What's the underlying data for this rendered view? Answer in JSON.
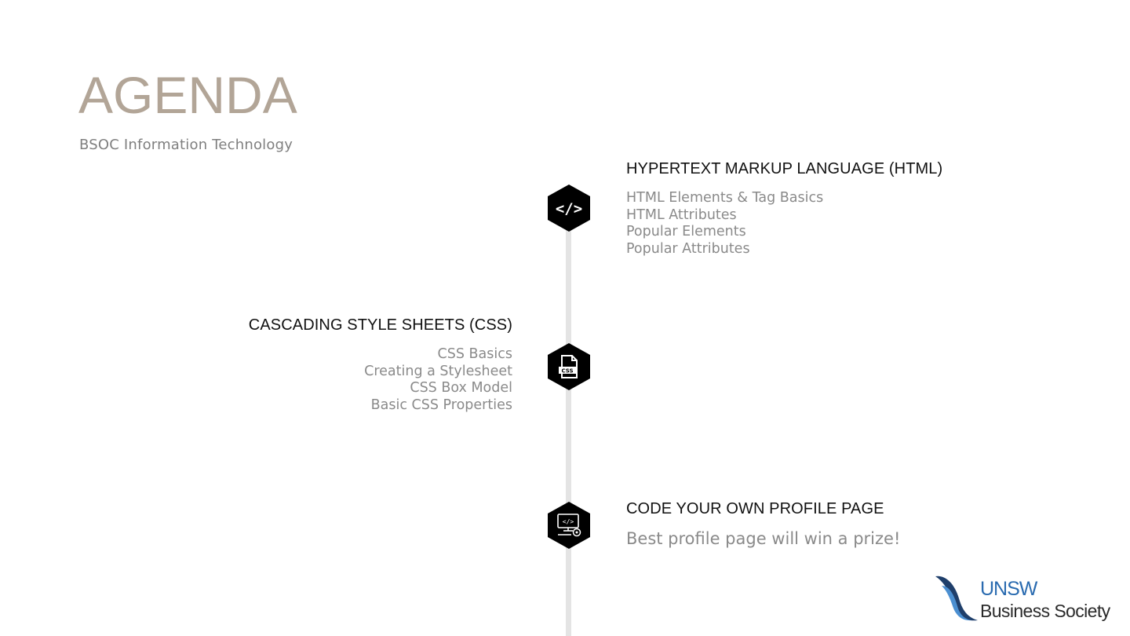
{
  "slide": {
    "title": "AGENDA",
    "subtitle": "BSOC Information Technology"
  },
  "sections": [
    {
      "title": "HYPERTEXT MARKUP LANGUAGE (HTML)",
      "icon": "code-brackets-icon",
      "items": [
        "HTML Elements & Tag Basics",
        "HTML Attributes",
        "Popular Elements",
        "Popular Attributes"
      ]
    },
    {
      "title": "CASCADING STYLE SHEETS (CSS)",
      "icon": "css-file-icon",
      "items": [
        "CSS Basics",
        "Creating a Stylesheet",
        "CSS Box Model",
        "Basic CSS Properties"
      ]
    },
    {
      "title": "CODE YOUR OWN PROFILE PAGE",
      "icon": "computer-code-icon",
      "description": "Best profile page will win a prize!"
    }
  ],
  "logo": {
    "line1": "UNSW",
    "line2": "Business Society"
  },
  "colors": {
    "title": "#b2a597",
    "text_muted": "#8a8a8a",
    "timeline": "#e4e4e4",
    "hex": "#000000",
    "logo_blue": "#2a6bb0"
  }
}
